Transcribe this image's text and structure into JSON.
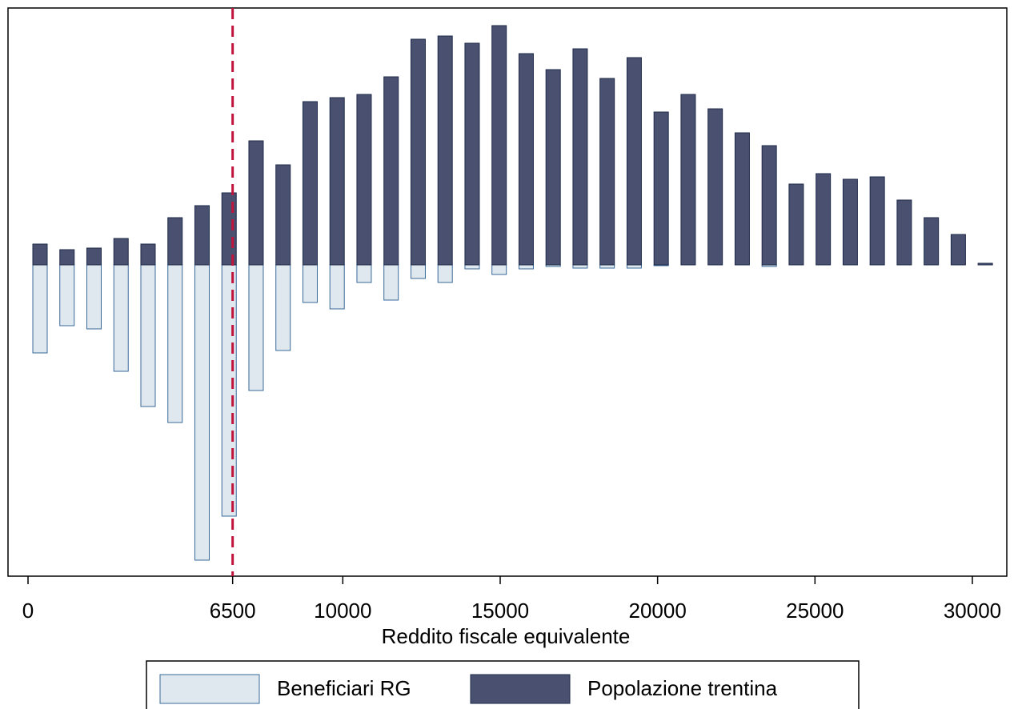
{
  "chart_data": {
    "type": "bar",
    "xlabel": "Reddito fiscale equivalente",
    "x": [
      381,
      1239,
      2097,
      2955,
      3813,
      4671,
      5529,
      6387,
      7245,
      8103,
      8961,
      9819,
      10677,
      11535,
      12393,
      13251,
      14109,
      14967,
      15825,
      16683,
      17541,
      18399,
      19257,
      20115,
      20973,
      21831,
      22689,
      23547,
      24405,
      25263,
      26121,
      26979,
      27837,
      28695,
      29553,
      30411
    ],
    "series": [
      {
        "name": "Beneficiari RG",
        "color": "#dfe8ef",
        "edge": "#3a6a9a",
        "values": [
          -11.0,
          -7.6,
          -8.0,
          -13.3,
          -17.7,
          -19.7,
          -36.9,
          -31.4,
          -15.7,
          -10.7,
          -4.7,
          -5.5,
          -2.2,
          -4.4,
          -1.7,
          -2.2,
          -0.5,
          -1.2,
          -0.5,
          -0.2,
          -0.4,
          -0.4,
          -0.4,
          -0.1,
          0,
          0,
          0,
          -0.2,
          0,
          0,
          0,
          0,
          0,
          0,
          0,
          0
        ]
      },
      {
        "name": "Popolazione trentina",
        "color": "#4a5170",
        "edge": "#1f2a4a",
        "values": [
          2.6,
          1.9,
          2.1,
          3.3,
          2.6,
          5.9,
          7.4,
          9.0,
          15.5,
          12.5,
          20.4,
          20.9,
          21.3,
          23.5,
          28.2,
          28.6,
          27.7,
          29.9,
          26.4,
          24.4,
          27.0,
          23.3,
          25.9,
          19.1,
          21.3,
          19.5,
          16.5,
          14.9,
          10.1,
          11.4,
          10.7,
          11.0,
          8.1,
          5.9,
          3.8,
          0.2
        ]
      }
    ],
    "xlim": [
      -636,
      31094
    ],
    "xticks": [
      0,
      6500,
      10000,
      15000,
      20000,
      25000,
      30000
    ],
    "ylim": [
      -38.9,
      32.1
    ],
    "vline": 6500,
    "vline_color": "#c0143c"
  }
}
